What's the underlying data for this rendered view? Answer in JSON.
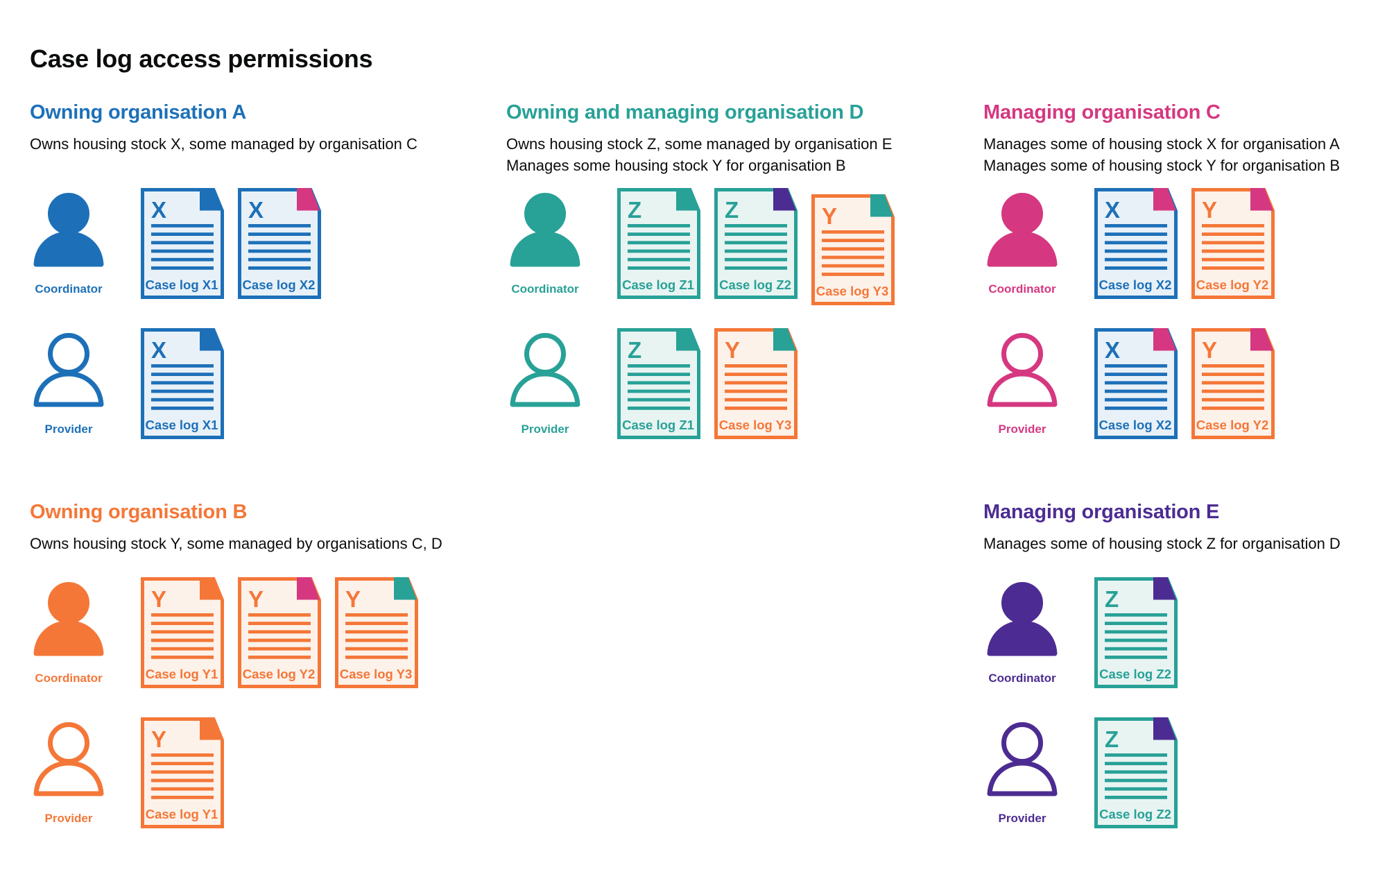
{
  "title": "Case log access permissions",
  "colors": {
    "blue": "#1d70b8",
    "teal": "#28a197",
    "pink": "#d53880",
    "orange": "#f47738",
    "purple": "#4c2c92",
    "text": "#0b0c0c",
    "doc_bg_blue": "#e8f1f8",
    "doc_bg_teal": "#e8f4f2",
    "doc_bg_orange": "#fdf2ea"
  },
  "sections": [
    {
      "id": "org-a",
      "heading": "Owning organisation A",
      "color": "blue",
      "description": [
        "Owns housing stock X, some managed by organisation C"
      ],
      "rows": [
        {
          "role": "Coordinator",
          "person_style": "filled",
          "docs": [
            {
              "letter": "X",
              "label": "Case log X1",
              "doc_color": "blue",
              "fold_color": "blue"
            },
            {
              "letter": "X",
              "label": "Case log X2",
              "doc_color": "blue",
              "fold_color": "pink"
            }
          ]
        },
        {
          "role": "Provider",
          "person_style": "outline",
          "docs": [
            {
              "letter": "X",
              "label": "Case log X1",
              "doc_color": "blue",
              "fold_color": "blue"
            }
          ]
        }
      ]
    },
    {
      "id": "org-d",
      "heading": "Owning and managing organisation D",
      "color": "teal",
      "description": [
        "Owns housing stock Z, some managed by organisation E",
        "Manages some housing stock Y for organisation B"
      ],
      "rows": [
        {
          "role": "Coordinator",
          "person_style": "filled",
          "docs": [
            {
              "letter": "Z",
              "label": "Case log Z1",
              "doc_color": "teal",
              "fold_color": "teal"
            },
            {
              "letter": "Z",
              "label": "Case log Z2",
              "doc_color": "teal",
              "fold_color": "purple"
            },
            {
              "letter": "Y",
              "label": "Case log Y3",
              "doc_color": "orange",
              "fold_color": "teal",
              "offset": true
            }
          ]
        },
        {
          "role": "Provider",
          "person_style": "outline",
          "docs": [
            {
              "letter": "Z",
              "label": "Case log Z1",
              "doc_color": "teal",
              "fold_color": "teal"
            },
            {
              "letter": "Y",
              "label": "Case log Y3",
              "doc_color": "orange",
              "fold_color": "teal"
            }
          ]
        }
      ]
    },
    {
      "id": "org-c",
      "heading": "Managing organisation C",
      "color": "pink",
      "description": [
        "Manages some of housing stock X for organisation A",
        "Manages some of housing stock Y for organisation B"
      ],
      "rows": [
        {
          "role": "Coordinator",
          "person_style": "filled",
          "docs": [
            {
              "letter": "X",
              "label": "Case log X2",
              "doc_color": "blue",
              "fold_color": "pink"
            },
            {
              "letter": "Y",
              "label": "Case log Y2",
              "doc_color": "orange",
              "fold_color": "pink"
            }
          ]
        },
        {
          "role": "Provider",
          "person_style": "outline",
          "docs": [
            {
              "letter": "X",
              "label": "Case log X2",
              "doc_color": "blue",
              "fold_color": "pink"
            },
            {
              "letter": "Y",
              "label": "Case log Y2",
              "doc_color": "orange",
              "fold_color": "pink"
            }
          ]
        }
      ]
    },
    {
      "id": "org-b",
      "heading": "Owning organisation B",
      "color": "orange",
      "description": [
        "Owns housing stock Y, some managed by organisations C, D"
      ],
      "rows": [
        {
          "role": "Coordinator",
          "person_style": "filled",
          "docs": [
            {
              "letter": "Y",
              "label": "Case log Y1",
              "doc_color": "orange",
              "fold_color": "orange"
            },
            {
              "letter": "Y",
              "label": "Case log Y2",
              "doc_color": "orange",
              "fold_color": "pink"
            },
            {
              "letter": "Y",
              "label": "Case log Y3",
              "doc_color": "orange",
              "fold_color": "teal"
            }
          ]
        },
        {
          "role": "Provider",
          "person_style": "outline",
          "docs": [
            {
              "letter": "Y",
              "label": "Case log Y1",
              "doc_color": "orange",
              "fold_color": "orange"
            }
          ]
        }
      ]
    },
    {
      "id": "org-e",
      "heading": "Managing organisation E",
      "color": "purple",
      "description": [
        "Manages some of housing stock Z for organisation D"
      ],
      "rows": [
        {
          "role": "Coordinator",
          "person_style": "filled",
          "docs": [
            {
              "letter": "Z",
              "label": "Case log Z2",
              "doc_color": "teal",
              "fold_color": "purple"
            }
          ]
        },
        {
          "role": "Provider",
          "person_style": "outline",
          "docs": [
            {
              "letter": "Z",
              "label": "Case log Z2",
              "doc_color": "teal",
              "fold_color": "purple"
            }
          ]
        }
      ]
    }
  ]
}
